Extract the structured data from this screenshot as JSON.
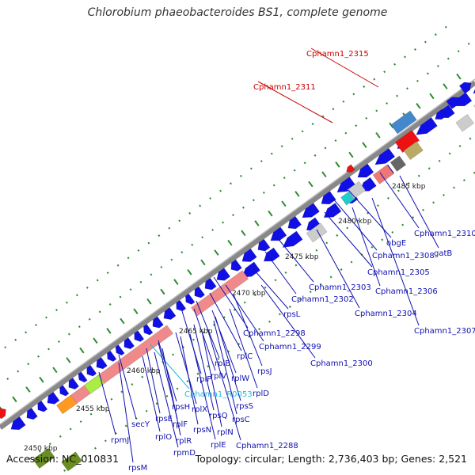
{
  "title": "Chlorobium phaeobacteroides BS1, complete genome",
  "accession": "Accession: NC_010831",
  "topology": "Topology: circular; Length: 2,736,403 bp; Genes: 2,521",
  "colors": {
    "axis": "#888888",
    "gene": "#1010e6",
    "rrna_pink": "#f08a8a",
    "label_blue": "#1010b0",
    "label_red": "#cc0000",
    "label_cyan": "#22bbdd",
    "tick_green": "#2f8a2f"
  },
  "kbp_labels": [
    "2450 kbp",
    "2455 kbp",
    "2460 kbp",
    "2465 kbp",
    "2470 kbp",
    "2475 kbp",
    "2480 kbp",
    "2485 kbp"
  ],
  "gene_labels": [
    "Cphamn1_2315",
    "Cphamn1_2311",
    "Cphamn1_2310",
    "obgE",
    "gatB",
    "Cphamn1_2308",
    "Cphamn1_2305",
    "Cphamn1_2306",
    "Cphamn1_2303",
    "Cphamn1_2304",
    "Cphamn1_2307",
    "Cphamn1_2302",
    "rpsL",
    "Cphamn1_2298",
    "Cphamn1_2299",
    "Cphamn1_2300",
    "rplC",
    "rpsJ",
    "rplB",
    "rplV",
    "rplP",
    "rplW",
    "rplD",
    "Cphamn1_R0053",
    "rpsS",
    "rplX",
    "rpsQ",
    "rpsH",
    "rpsC",
    "rpsE",
    "rplF",
    "rpsN",
    "rplN",
    "secY",
    "rplO",
    "rplR",
    "Cphamn1_2288",
    "rplE",
    "rpmJ",
    "rpmD",
    "rpsM"
  ]
}
